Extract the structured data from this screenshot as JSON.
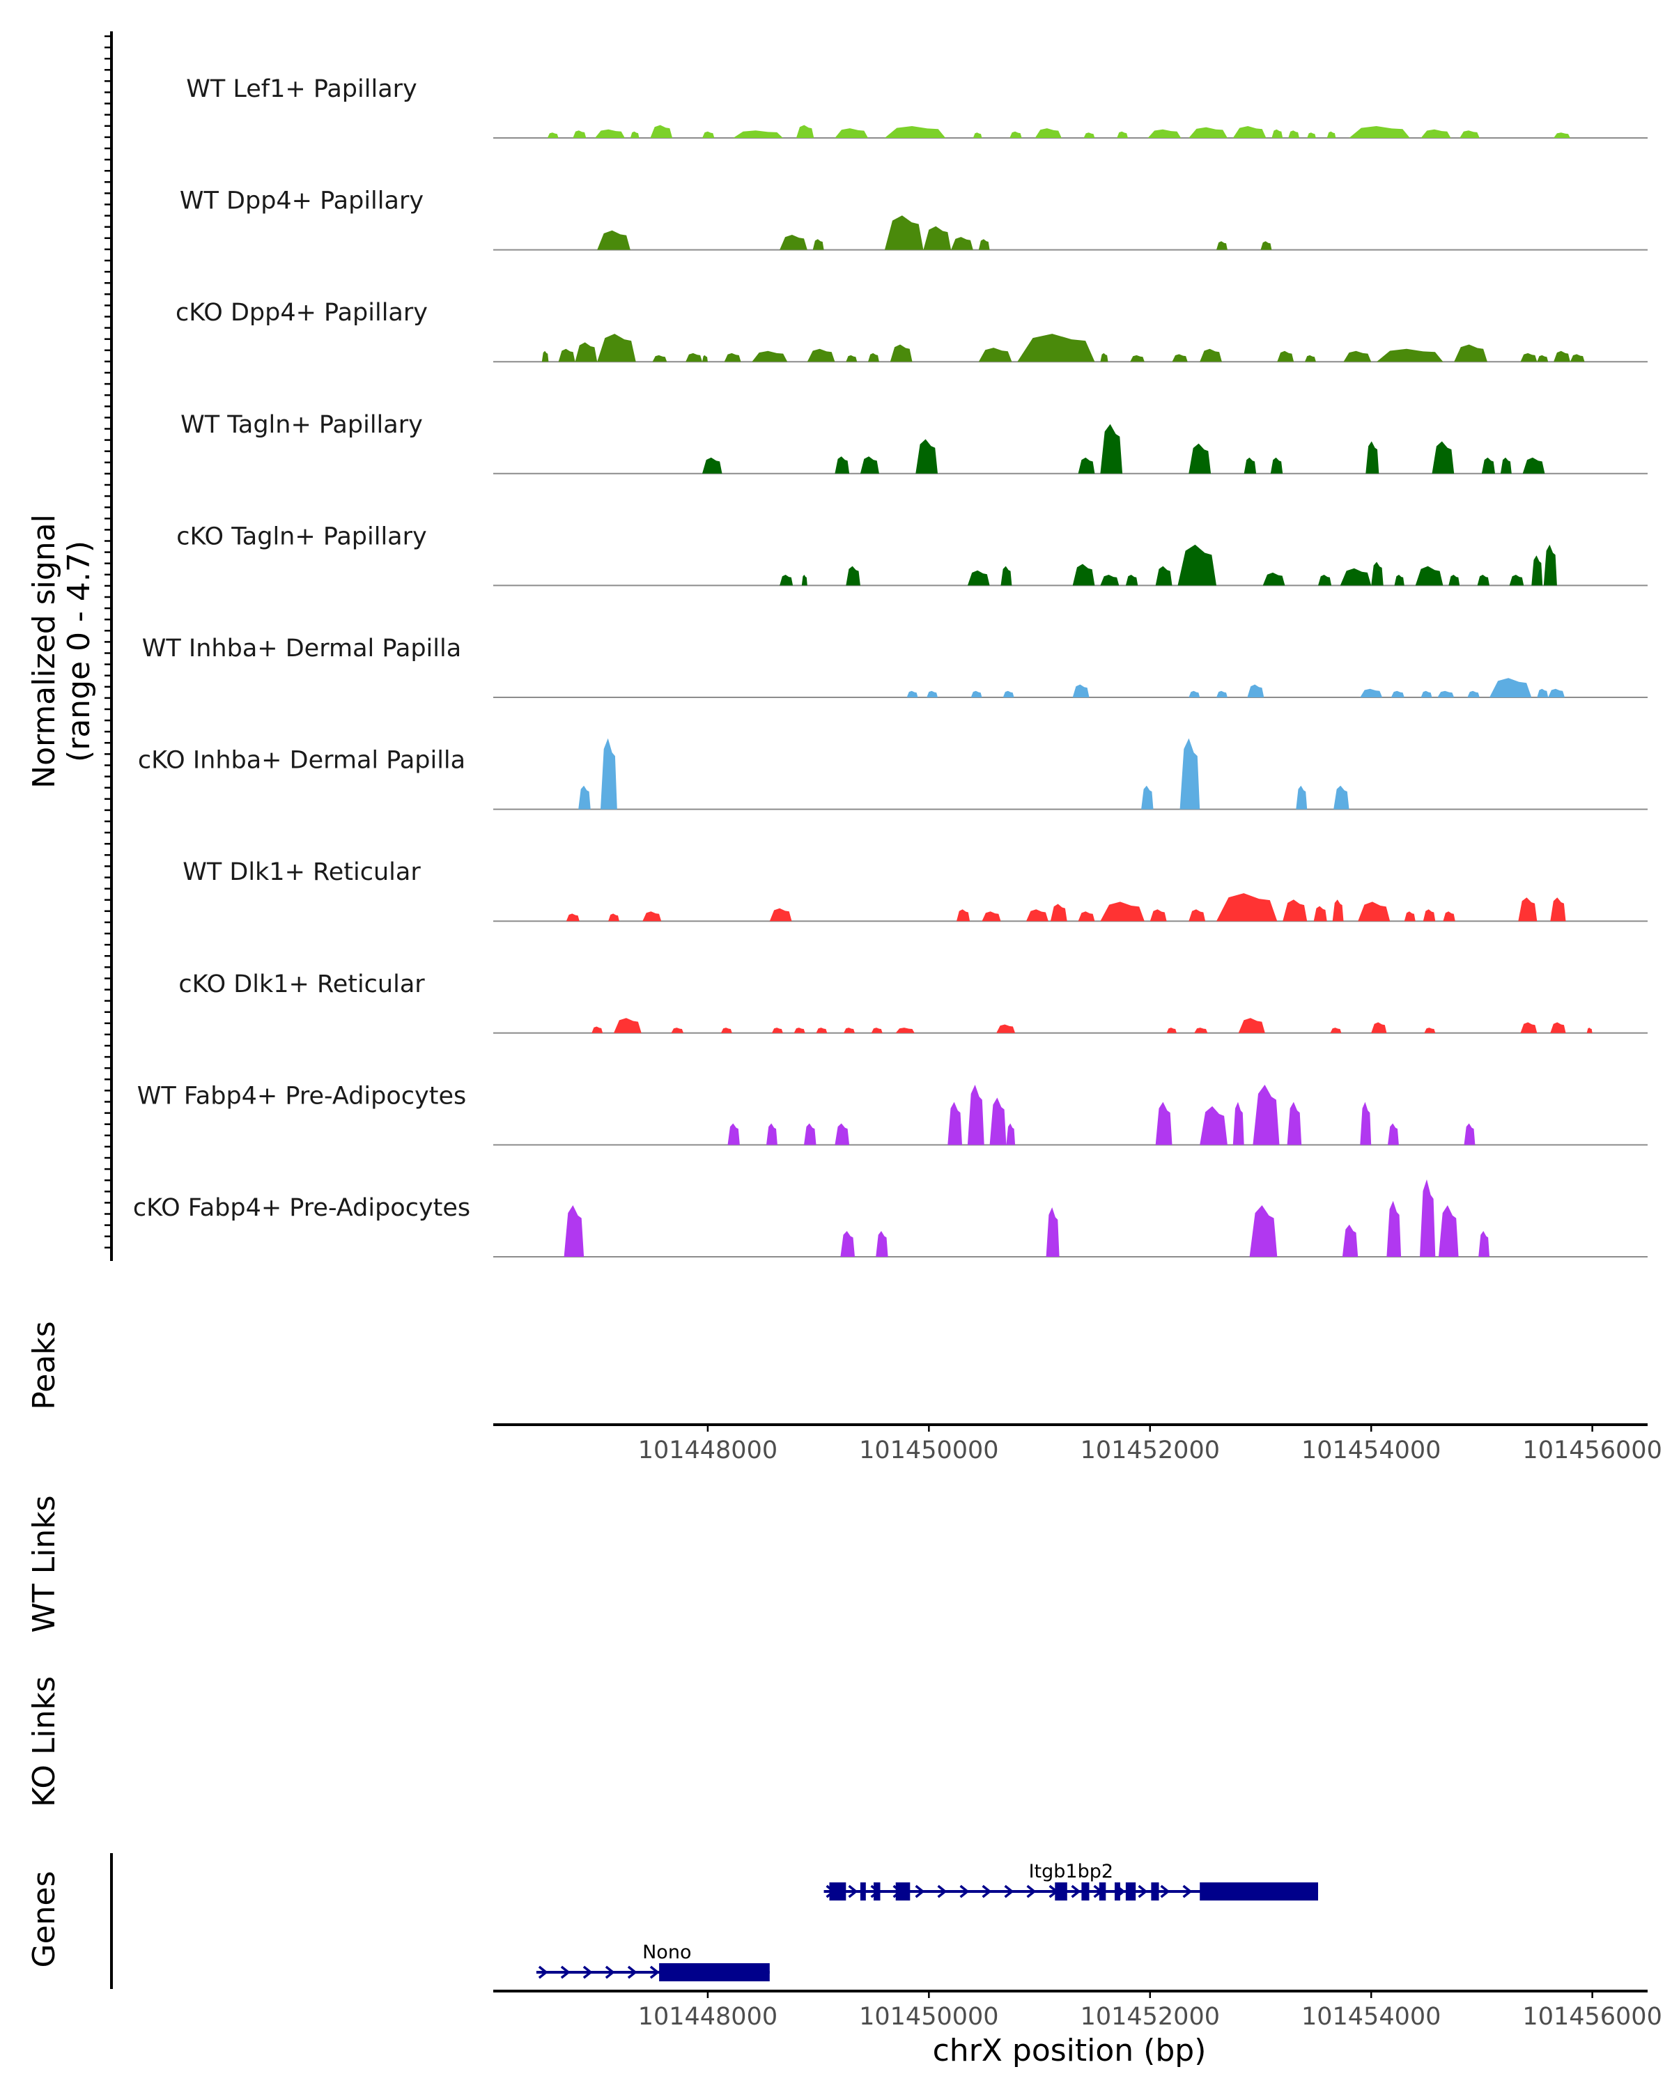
{
  "chart_data": {
    "type": "area",
    "title": "",
    "xlabel": "chrX position (bp)",
    "x_range": [
      101446060,
      101456500
    ],
    "x_ticks": [
      101448000,
      101450000,
      101452000,
      101454000,
      101456000
    ],
    "x_tick_labels": [
      "101448000",
      "101450000",
      "101452000",
      "101454000",
      "101456000"
    ],
    "ylabel": "Normalized signal\n(range 0 - 4.7)",
    "ylabel_lines": [
      "Normalized signal",
      "(range 0 - 4.7)"
    ],
    "ylim": [
      0,
      4.7
    ],
    "series": [
      {
        "name": "WT Lef1+ Papillary",
        "color": "#7CD12A",
        "regions": [
          [
            101446550,
            101446650,
            0.25
          ],
          [
            101446780,
            101446900,
            0.35
          ],
          [
            101446980,
            101447250,
            0.4
          ],
          [
            101447300,
            101447380,
            0.3
          ],
          [
            101447480,
            101447680,
            0.6
          ],
          [
            101447950,
            101448060,
            0.3
          ],
          [
            101448230,
            101448680,
            0.35
          ],
          [
            101448800,
            101448960,
            0.6
          ],
          [
            101449150,
            101449450,
            0.45
          ],
          [
            101449600,
            101450150,
            0.55
          ],
          [
            101450400,
            101450480,
            0.25
          ],
          [
            101450730,
            101450840,
            0.3
          ],
          [
            101450960,
            101451200,
            0.45
          ],
          [
            101451400,
            101451500,
            0.25
          ],
          [
            101451700,
            101451800,
            0.3
          ],
          [
            101451980,
            101452280,
            0.4
          ],
          [
            101452350,
            101452700,
            0.5
          ],
          [
            101452750,
            101453050,
            0.55
          ],
          [
            101453100,
            101453200,
            0.4
          ],
          [
            101453250,
            101453350,
            0.35
          ],
          [
            101453420,
            101453500,
            0.25
          ],
          [
            101453600,
            101453680,
            0.3
          ],
          [
            101453800,
            101454350,
            0.55
          ],
          [
            101454450,
            101454720,
            0.4
          ],
          [
            101454800,
            101454980,
            0.35
          ],
          [
            101455650,
            101455800,
            0.25
          ]
        ]
      },
      {
        "name": "WT Dpp4+ Papillary",
        "color": "#4A8A0B",
        "regions": [
          [
            101447000,
            101447300,
            0.9
          ],
          [
            101448650,
            101448900,
            0.7
          ],
          [
            101448950,
            101449050,
            0.5
          ],
          [
            101449600,
            101449950,
            1.6
          ],
          [
            101449950,
            101450200,
            1.1
          ],
          [
            101450200,
            101450400,
            0.6
          ],
          [
            101450450,
            101450550,
            0.5
          ],
          [
            101452600,
            101452700,
            0.4
          ],
          [
            101453000,
            101453100,
            0.4
          ]
        ]
      },
      {
        "name": "cKO Dpp4+ Papillary",
        "color": "#4A8A0B",
        "regions": [
          [
            101446500,
            101446560,
            0.5
          ],
          [
            101446650,
            101446800,
            0.6
          ],
          [
            101446800,
            101447000,
            0.9
          ],
          [
            101447000,
            101447350,
            1.3
          ],
          [
            101447500,
            101447630,
            0.3
          ],
          [
            101447800,
            101447950,
            0.4
          ],
          [
            101447950,
            101448000,
            0.3
          ],
          [
            101448150,
            101448300,
            0.4
          ],
          [
            101448400,
            101448720,
            0.5
          ],
          [
            101448900,
            101449150,
            0.6
          ],
          [
            101449250,
            101449350,
            0.3
          ],
          [
            101449450,
            101449550,
            0.4
          ],
          [
            101449650,
            101449850,
            0.8
          ],
          [
            101450450,
            101450750,
            0.65
          ],
          [
            101450800,
            101451500,
            1.3
          ],
          [
            101451550,
            101451620,
            0.4
          ],
          [
            101451820,
            101451950,
            0.3
          ],
          [
            101452200,
            101452340,
            0.35
          ],
          [
            101452450,
            101452650,
            0.6
          ],
          [
            101453150,
            101453300,
            0.5
          ],
          [
            101453400,
            101453500,
            0.3
          ],
          [
            101453750,
            101454000,
            0.5
          ],
          [
            101454050,
            101454650,
            0.6
          ],
          [
            101454750,
            101455050,
            0.8
          ],
          [
            101455350,
            101455500,
            0.4
          ],
          [
            101455500,
            101455600,
            0.3
          ],
          [
            101455650,
            101455800,
            0.5
          ],
          [
            101455800,
            101455930,
            0.35
          ]
        ]
      },
      {
        "name": "WT Tagln+ Papillary",
        "color": "#006400",
        "regions": [
          [
            101447950,
            101448130,
            0.75
          ],
          [
            101449150,
            101449280,
            0.8
          ],
          [
            101449380,
            101449550,
            0.8
          ],
          [
            101449880,
            101450080,
            1.6
          ],
          [
            101451350,
            101451500,
            0.75
          ],
          [
            101451550,
            101451750,
            2.3
          ],
          [
            101452350,
            101452550,
            1.4
          ],
          [
            101452850,
            101452960,
            0.75
          ],
          [
            101453090,
            101453200,
            0.75
          ],
          [
            101453950,
            101454070,
            1.5
          ],
          [
            101454550,
            101454750,
            1.5
          ],
          [
            101455000,
            101455120,
            0.75
          ],
          [
            101455170,
            101455270,
            0.75
          ],
          [
            101455370,
            101455570,
            0.75
          ]
        ]
      },
      {
        "name": "cKO Tagln+ Papillary",
        "color": "#006400",
        "regions": [
          [
            101448650,
            101448770,
            0.5
          ],
          [
            101448850,
            101448900,
            0.5
          ],
          [
            101449250,
            101449380,
            0.9
          ],
          [
            101450350,
            101450550,
            0.7
          ],
          [
            101450650,
            101450750,
            0.9
          ],
          [
            101451300,
            101451500,
            1.0
          ],
          [
            101451550,
            101451720,
            0.5
          ],
          [
            101451780,
            101451890,
            0.5
          ],
          [
            101452050,
            101452200,
            0.9
          ],
          [
            101452250,
            101452600,
            1.9
          ],
          [
            101453020,
            101453220,
            0.6
          ],
          [
            101453520,
            101453640,
            0.5
          ],
          [
            101453720,
            101454000,
            0.8
          ],
          [
            101454000,
            101454110,
            1.1
          ],
          [
            101454210,
            101454300,
            0.5
          ],
          [
            101454400,
            101454650,
            0.9
          ],
          [
            101454700,
            101454800,
            0.5
          ],
          [
            101454960,
            101455070,
            0.5
          ],
          [
            101455250,
            101455380,
            0.5
          ],
          [
            101455450,
            101455550,
            1.4
          ],
          [
            101455560,
            101455680,
            1.9
          ]
        ]
      },
      {
        "name": "WT Inhba+ Dermal Papilla",
        "color": "#5DADE2",
        "regions": [
          [
            101449800,
            101449900,
            0.3
          ],
          [
            101449980,
            101450080,
            0.3
          ],
          [
            101450380,
            101450480,
            0.3
          ],
          [
            101450670,
            101450770,
            0.3
          ],
          [
            101451300,
            101451450,
            0.6
          ],
          [
            101452350,
            101452450,
            0.3
          ],
          [
            101452600,
            101452700,
            0.3
          ],
          [
            101452880,
            101453030,
            0.6
          ],
          [
            101453900,
            101454100,
            0.4
          ],
          [
            101454180,
            101454300,
            0.3
          ],
          [
            101454450,
            101454550,
            0.3
          ],
          [
            101454600,
            101454750,
            0.3
          ],
          [
            101454870,
            101454980,
            0.3
          ],
          [
            101455070,
            101455450,
            0.9
          ],
          [
            101455500,
            101455600,
            0.4
          ],
          [
            101455600,
            101455750,
            0.4
          ]
        ]
      },
      {
        "name": "cKO Inhba+ Dermal Papilla",
        "color": "#5DADE2",
        "regions": [
          [
            101446830,
            101446940,
            1.1
          ],
          [
            101447030,
            101447180,
            3.3
          ],
          [
            101451920,
            101452030,
            1.1
          ],
          [
            101452270,
            101452450,
            3.3
          ],
          [
            101453320,
            101453420,
            1.1
          ],
          [
            101453660,
            101453800,
            1.1
          ]
        ]
      },
      {
        "name": "WT Dlk1+ Reticular",
        "color": "#FF3333",
        "regions": [
          [
            101446720,
            101446840,
            0.35
          ],
          [
            101447100,
            101447200,
            0.35
          ],
          [
            101447410,
            101447580,
            0.45
          ],
          [
            101448560,
            101448760,
            0.6
          ],
          [
            101450250,
            101450370,
            0.55
          ],
          [
            101450480,
            101450650,
            0.45
          ],
          [
            101450880,
            101451080,
            0.55
          ],
          [
            101451100,
            101451250,
            0.8
          ],
          [
            101451350,
            101451500,
            0.45
          ],
          [
            101451550,
            101451950,
            0.9
          ],
          [
            101452000,
            101452150,
            0.55
          ],
          [
            101452350,
            101452500,
            0.55
          ],
          [
            101452600,
            101453150,
            1.3
          ],
          [
            101453200,
            101453420,
            1.0
          ],
          [
            101453480,
            101453600,
            0.7
          ],
          [
            101453650,
            101453750,
            1.0
          ],
          [
            101453880,
            101454170,
            0.9
          ],
          [
            101454300,
            101454400,
            0.45
          ],
          [
            101454470,
            101454580,
            0.55
          ],
          [
            101454650,
            101454760,
            0.45
          ],
          [
            101455330,
            101455500,
            1.1
          ],
          [
            101455620,
            101455760,
            1.1
          ]
        ]
      },
      {
        "name": "cKO Dlk1+ Reticular",
        "color": "#FF3333",
        "regions": [
          [
            101446950,
            101447050,
            0.3
          ],
          [
            101447150,
            101447400,
            0.7
          ],
          [
            101447670,
            101447780,
            0.25
          ],
          [
            101448120,
            101448220,
            0.25
          ],
          [
            101448580,
            101448680,
            0.25
          ],
          [
            101448780,
            101448880,
            0.25
          ],
          [
            101448980,
            101449080,
            0.25
          ],
          [
            101449230,
            101449330,
            0.25
          ],
          [
            101449480,
            101449580,
            0.25
          ],
          [
            101449700,
            101449870,
            0.25
          ],
          [
            101450610,
            101450780,
            0.4
          ],
          [
            101452150,
            101452240,
            0.25
          ],
          [
            101452400,
            101452520,
            0.25
          ],
          [
            101452800,
            101453040,
            0.7
          ],
          [
            101453630,
            101453730,
            0.25
          ],
          [
            101454000,
            101454140,
            0.5
          ],
          [
            101454480,
            101454580,
            0.25
          ],
          [
            101455350,
            101455500,
            0.5
          ],
          [
            101455620,
            101455760,
            0.5
          ],
          [
            101455950,
            101456000,
            0.25
          ]
        ]
      },
      {
        "name": "WT Fabp4+ Pre-Adipocytes",
        "color": "#B138F0",
        "regions": [
          [
            101448180,
            101448290,
            1.0
          ],
          [
            101448530,
            101448630,
            1.0
          ],
          [
            101448870,
            101448980,
            1.0
          ],
          [
            101449150,
            101449280,
            1.0
          ],
          [
            101450170,
            101450300,
            2.0
          ],
          [
            101450350,
            101450500,
            2.8
          ],
          [
            101450550,
            101450700,
            2.2
          ],
          [
            101450700,
            101450780,
            1.0
          ],
          [
            101452050,
            101452200,
            2.0
          ],
          [
            101452450,
            101452700,
            1.8
          ],
          [
            101452750,
            101452850,
            2.0
          ],
          [
            101452930,
            101453170,
            2.8
          ],
          [
            101453240,
            101453370,
            2.0
          ],
          [
            101453900,
            101454000,
            2.0
          ],
          [
            101454150,
            101454250,
            1.0
          ],
          [
            101454840,
            101454940,
            1.0
          ]
        ]
      },
      {
        "name": "cKO Fabp4+ Pre-Adipocytes",
        "color": "#B138F0",
        "regions": [
          [
            101446700,
            101446880,
            2.4
          ],
          [
            101449200,
            101449330,
            1.2
          ],
          [
            101449520,
            101449630,
            1.2
          ],
          [
            101451060,
            101451180,
            2.3
          ],
          [
            101452900,
            101453150,
            2.4
          ],
          [
            101453740,
            101453880,
            1.5
          ],
          [
            101454140,
            101454270,
            2.6
          ],
          [
            101454440,
            101454580,
            3.6
          ],
          [
            101454610,
            101454790,
            2.4
          ],
          [
            101454970,
            101455070,
            1.2
          ]
        ]
      }
    ],
    "track_labels": {
      "peaks": "Peaks",
      "wt_links": "WT Links",
      "ko_links": "KO Links",
      "genes": "Genes"
    },
    "genes": [
      {
        "name": "Nono",
        "strand": "+",
        "start": 101446450,
        "end": 101448560,
        "exons": [
          [
            101447560,
            101448560
          ]
        ]
      },
      {
        "name": "Itgb1bp2",
        "strand": "+",
        "start": 101449050,
        "end": 101453520,
        "exons": [
          [
            101449100,
            101449250
          ],
          [
            101449380,
            101449430
          ],
          [
            101449500,
            101449560
          ],
          [
            101449700,
            101449830
          ],
          [
            101451140,
            101451250
          ],
          [
            101451380,
            101451450
          ],
          [
            101451540,
            101451600
          ],
          [
            101451680,
            101451730
          ],
          [
            101451780,
            101451870
          ],
          [
            101452010,
            101452080
          ],
          [
            101452450,
            101453520
          ]
        ]
      }
    ],
    "gene_color": "#00008B"
  }
}
